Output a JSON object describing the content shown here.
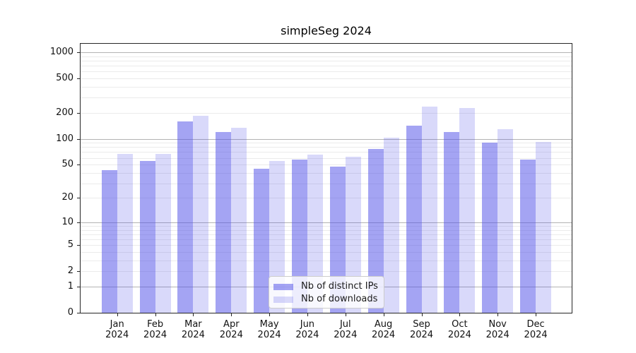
{
  "chart_data": {
    "type": "bar",
    "title": "simpleSeg 2024",
    "categories": [
      "Jan",
      "Feb",
      "Mar",
      "Apr",
      "May",
      "Jun",
      "Jul",
      "Aug",
      "Sep",
      "Oct",
      "Nov",
      "Dec"
    ],
    "x_year": "2024",
    "series": [
      {
        "name": "Nb of distinct IPs",
        "color": "rgba(80,80,232,0.52)",
        "values": [
          43,
          55,
          160,
          120,
          45,
          57,
          47,
          76,
          141,
          121,
          90,
          57
        ]
      },
      {
        "name": "Nb of downloads",
        "color": "rgba(80,80,232,0.22)",
        "values": [
          67,
          67,
          186,
          134,
          55,
          66,
          62,
          104,
          237,
          226,
          130,
          92
        ]
      }
    ],
    "xlabel": "",
    "ylabel": "",
    "y_scale": "log10(value+1)",
    "ylim": [
      0,
      1254
    ],
    "y_ticks": [
      0,
      1,
      2,
      5,
      10,
      20,
      50,
      100,
      200,
      500,
      1000
    ],
    "major_gridlines": [
      1,
      10,
      100,
      1000
    ],
    "minor_gridline_decades": [
      1,
      10,
      100
    ],
    "grid": true,
    "legend_position": "lower center",
    "colors": {
      "bar_base": "#5050e8",
      "major_grid": "#b3b3b3",
      "minor_grid": "#ebebeb",
      "spine": "#262626",
      "legend_border": "#cccccc"
    }
  }
}
